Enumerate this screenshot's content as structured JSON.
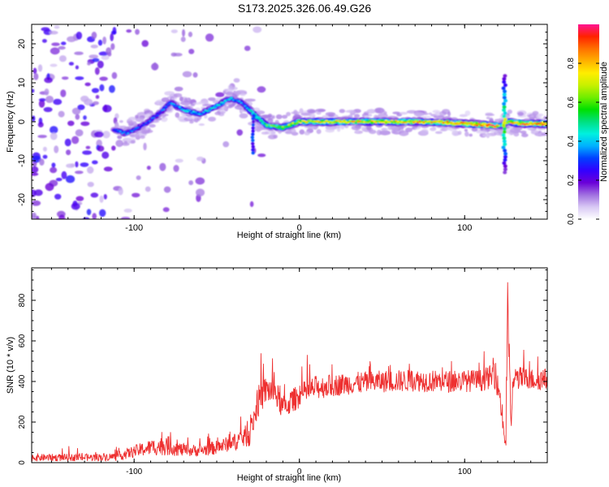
{
  "title": "S173.2025.326.06.49.G26",
  "chart_data": [
    {
      "type": "heatmap",
      "xlabel": "Height of straight line (km)",
      "ylabel": "Frequency (Hz)",
      "xlim": [
        -162,
        150
      ],
      "ylim": [
        -25,
        25
      ],
      "xticks": [
        -100,
        0,
        100
      ],
      "yticks": [
        -20,
        -10,
        0,
        10,
        20
      ],
      "colorbar": {
        "label": "Normalized spectral amplitude",
        "range": [
          0,
          1
        ],
        "ticks": [
          0.0,
          0.2,
          0.4,
          0.6,
          0.8
        ],
        "colors": [
          "#ffffff",
          "#d8c8f4",
          "#a070e0",
          "#6a00d8",
          "#3300ff",
          "#0040ff",
          "#00b0ff",
          "#00f0e0",
          "#00e080",
          "#00e000",
          "#70ee00",
          "#c8f000",
          "#ffee00",
          "#ffb000",
          "#ff7000",
          "#ff2200",
          "#ff1493"
        ]
      },
      "ridge": {
        "x": [
          -112,
          -105,
          -95,
          -85,
          -78,
          -70,
          -60,
          -50,
          -42,
          -35,
          -30,
          -25,
          -20,
          -10,
          0,
          20,
          50,
          80,
          100,
          118,
          122,
          126,
          135,
          150
        ],
        "f": [
          -2,
          -3,
          -1,
          2,
          5,
          3,
          2,
          4,
          6,
          5,
          3,
          1,
          -1,
          -1.5,
          0,
          0,
          0,
          0,
          -0.5,
          -1,
          -1,
          0,
          -0.5,
          -0.5
        ],
        "amp": [
          0.3,
          0.35,
          0.3,
          0.3,
          0.35,
          0.4,
          0.4,
          0.4,
          0.4,
          0.35,
          0.45,
          0.5,
          0.55,
          0.6,
          0.7,
          0.75,
          0.75,
          0.8,
          0.8,
          0.9,
          0.5,
          0.7,
          0.85,
          0.85
        ]
      }
    },
    {
      "type": "line",
      "xlabel": "Height of straight line (km)",
      "ylabel": "SNR (10 * v/v)",
      "xlim": [
        -162,
        150
      ],
      "ylim": [
        0,
        960
      ],
      "xticks": [
        -100,
        0,
        100
      ],
      "yticks": [
        0,
        200,
        400,
        600,
        800
      ],
      "color": "#ee3030",
      "series": [
        {
          "name": "SNR",
          "x": [
            -162,
            -130,
            -110,
            -100,
            -90,
            -80,
            -70,
            -60,
            -50,
            -40,
            -30,
            -25,
            -20,
            -15,
            -10,
            -5,
            0,
            10,
            20,
            30,
            50,
            70,
            90,
            110,
            118,
            121,
            124,
            125,
            126,
            128,
            130,
            140,
            150
          ],
          "y": [
            25,
            25,
            30,
            55,
            75,
            85,
            60,
            60,
            75,
            100,
            140,
            300,
            360,
            350,
            270,
            300,
            330,
            370,
            380,
            390,
            400,
            405,
            400,
            405,
            430,
            350,
            130,
            100,
            800,
            200,
            420,
            410,
            410
          ],
          "jitter": [
            18,
            18,
            20,
            30,
            40,
            50,
            30,
            30,
            35,
            40,
            60,
            80,
            70,
            70,
            60,
            60,
            60,
            60,
            55,
            55,
            55,
            55,
            55,
            55,
            60,
            60,
            50,
            40,
            120,
            60,
            60,
            55,
            55
          ]
        }
      ]
    }
  ]
}
